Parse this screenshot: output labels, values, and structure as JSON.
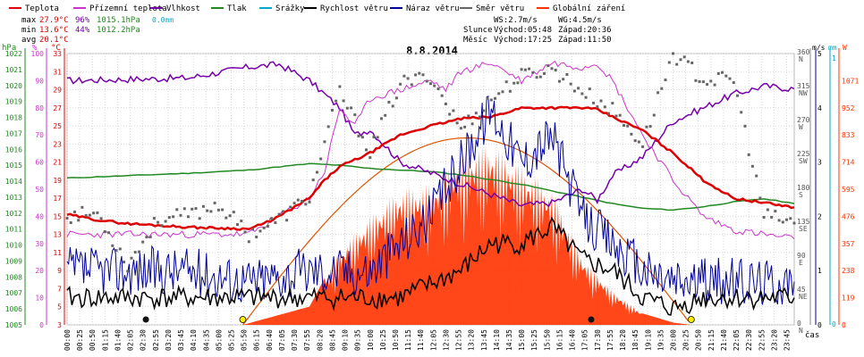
{
  "chart_data": {
    "type": "line",
    "title": "8.8.2014",
    "legend": [
      {
        "label": "Teplota",
        "color": "#dd0000"
      },
      {
        "label": "Přízemní teplota",
        "color": "#cc33cc"
      },
      {
        "label": "Vlhkost",
        "color": "#7700aa"
      },
      {
        "label": "Tlak",
        "color": "#228822"
      },
      {
        "label": "Srážky",
        "color": "#00aacc"
      },
      {
        "label": "Rychlost větru",
        "color": "#000000"
      },
      {
        "label": "Náraz větru",
        "color": "#000099"
      },
      {
        "label": "Směr větru",
        "color": "#666666"
      },
      {
        "label": "Globální záření",
        "color": "#ff3300"
      }
    ],
    "stats": {
      "max": {
        "label": "max",
        "temp": "27.9°C",
        "hum": "96%",
        "press": "1015.1hPa",
        "rain": "0.0mm"
      },
      "min": {
        "label": "min",
        "temp": "13.6°C",
        "hum": "44%",
        "press": "1012.2hPa"
      },
      "avg": {
        "label": "avg",
        "temp": "20.1°C"
      }
    },
    "info": {
      "ws": "WS:2.7m/s",
      "wg": "WG:4.5m/s",
      "slunce_label": "Slunce",
      "slunce_vychod": "Východ:05:48",
      "slunce_zapad": "Západ:20:36",
      "mesic_label": "Měsíc",
      "mesic_vychod": "Východ:17:25",
      "mesic_zapad": "Západ:11:50"
    },
    "axes": {
      "hpa": {
        "unit": "hPa",
        "min": 1005,
        "max": 1022,
        "ticks": [
          "1022",
          "1021",
          "1020",
          "1019",
          "1018",
          "1017",
          "1016",
          "1015",
          "1014",
          "1013",
          "1012",
          "1011",
          "1010",
          "1009",
          "1008",
          "1007",
          "1006",
          "1005"
        ]
      },
      "pct": {
        "unit": "%",
        "min": 0,
        "max": 100,
        "ticks": [
          "100",
          "90",
          "80",
          "70",
          "60",
          "50",
          "40",
          "30",
          "20",
          "10",
          "0"
        ]
      },
      "degc": {
        "unit": "°C",
        "min": 3,
        "max": 33,
        "ticks": [
          "33",
          "31",
          "29",
          "27",
          "25",
          "23",
          "21",
          "19",
          "17",
          "15",
          "13",
          "11",
          "9",
          "7",
          "5",
          "3"
        ]
      },
      "ms": {
        "unit": "m/s",
        "min": 0,
        "max": 5,
        "ticks": [
          "5",
          "4",
          "3",
          "2",
          "1",
          "0"
        ]
      },
      "mm": {
        "unit": "mm",
        "top_tick": "1",
        "bottom_tick": "0"
      },
      "dir": {
        "unit": "",
        "min": 0,
        "max": 360,
        "ticks": [
          {
            "v": 360,
            "deg": "360",
            "name": "N"
          },
          {
            "v": 315,
            "deg": "315",
            "name": "NW"
          },
          {
            "v": 270,
            "deg": "270",
            "name": "W"
          },
          {
            "v": 225,
            "deg": "225",
            "name": "SW"
          },
          {
            "v": 180,
            "deg": "180",
            "name": "S"
          },
          {
            "v": 135,
            "deg": "135",
            "name": "SE"
          },
          {
            "v": 90,
            "deg": "90",
            "name": "E"
          },
          {
            "v": 45,
            "deg": "45",
            "name": "NE"
          },
          {
            "v": 0,
            "deg": "0",
            "name": "N"
          }
        ]
      },
      "w": {
        "unit": "W",
        "min": 0,
        "max": 1190,
        "ticks": [
          "1071",
          "952",
          "833",
          "714",
          "595",
          "476",
          "357",
          "238",
          "119",
          "0"
        ]
      },
      "x": {
        "label": "čas",
        "ticks": [
          "00:00",
          "00:25",
          "00:50",
          "01:15",
          "01:40",
          "02:05",
          "02:30",
          "02:55",
          "03:20",
          "03:45",
          "04:10",
          "04:35",
          "05:00",
          "05:25",
          "05:50",
          "06:15",
          "06:40",
          "07:05",
          "07:30",
          "07:55",
          "08:20",
          "08:45",
          "09:10",
          "09:35",
          "10:00",
          "10:25",
          "10:50",
          "11:15",
          "11:40",
          "12:05",
          "12:30",
          "12:55",
          "13:20",
          "13:45",
          "14:10",
          "14:35",
          "15:00",
          "15:25",
          "15:50",
          "16:15",
          "16:40",
          "17:05",
          "17:30",
          "17:55",
          "18:20",
          "18:45",
          "19:10",
          "19:35",
          "20:00",
          "20:25",
          "20:50",
          "21:15",
          "21:40",
          "22:05",
          "22:30",
          "22:55",
          "23:20",
          "23:45"
        ]
      }
    },
    "series": [
      {
        "name": "Teplota",
        "axis": "degc",
        "points": [
          [
            0,
            15.2
          ],
          [
            1,
            14.6
          ],
          [
            2,
            14.2
          ],
          [
            3,
            14.0
          ],
          [
            4,
            13.8
          ],
          [
            5,
            13.7
          ],
          [
            6,
            13.6
          ],
          [
            6.5,
            14.2
          ],
          [
            7,
            15.0
          ],
          [
            8,
            17.0
          ],
          [
            8.5,
            19.0
          ],
          [
            9,
            20.5
          ],
          [
            10,
            22.0
          ],
          [
            11,
            24.0
          ],
          [
            12,
            25.0
          ],
          [
            13,
            25.8
          ],
          [
            14,
            26.0
          ],
          [
            15,
            27.0
          ],
          [
            16,
            27.0
          ],
          [
            17,
            27.0
          ],
          [
            17.5,
            26.8
          ],
          [
            18,
            26.0
          ],
          [
            19,
            24.5
          ],
          [
            20,
            22.0
          ],
          [
            21,
            19.0
          ],
          [
            22,
            17.0
          ],
          [
            23,
            16.5
          ],
          [
            24,
            16.0
          ]
        ]
      },
      {
        "name": "Přízemní teplota",
        "axis": "degc",
        "points": [
          [
            0,
            13.0
          ],
          [
            6,
            13.0
          ],
          [
            7,
            15.0
          ],
          [
            8,
            17.0
          ],
          [
            8.5,
            20.0
          ],
          [
            9,
            27.0
          ],
          [
            9.5,
            25.0
          ],
          [
            10,
            28.0
          ],
          [
            11,
            29.0
          ],
          [
            12,
            30.0
          ],
          [
            12.5,
            29.0
          ],
          [
            13,
            31.0
          ],
          [
            14,
            32.0
          ],
          [
            15,
            30.0
          ],
          [
            16,
            32.0
          ],
          [
            17,
            31.5
          ],
          [
            17.5,
            32.0
          ],
          [
            18,
            30.0
          ],
          [
            19,
            24.0
          ],
          [
            20,
            19.0
          ],
          [
            21,
            15.0
          ],
          [
            22,
            13.5
          ],
          [
            23,
            13.0
          ],
          [
            24,
            12.5
          ]
        ]
      },
      {
        "name": "Vlhkost",
        "axis": "pct",
        "points": [
          [
            0,
            90
          ],
          [
            4,
            91
          ],
          [
            6,
            95
          ],
          [
            7,
            96
          ],
          [
            8,
            90
          ],
          [
            9,
            80
          ],
          [
            9.5,
            70
          ],
          [
            10,
            72
          ],
          [
            11,
            60
          ],
          [
            12,
            56
          ],
          [
            13,
            52
          ],
          [
            14,
            48
          ],
          [
            15,
            44
          ],
          [
            16,
            45
          ],
          [
            17,
            50
          ],
          [
            17.5,
            46
          ],
          [
            18,
            55
          ],
          [
            19,
            62
          ],
          [
            20,
            75
          ],
          [
            21,
            80
          ],
          [
            22,
            85
          ],
          [
            23,
            88
          ],
          [
            24,
            87
          ]
        ]
      },
      {
        "name": "Tlak",
        "axis": "hpa",
        "points": [
          [
            0,
            1014.2
          ],
          [
            4,
            1014.5
          ],
          [
            6,
            1014.7
          ],
          [
            7,
            1014.9
          ],
          [
            8,
            1015.1
          ],
          [
            9,
            1015.0
          ],
          [
            10,
            1014.8
          ],
          [
            11,
            1014.7
          ],
          [
            12,
            1014.6
          ],
          [
            13,
            1014.4
          ],
          [
            14,
            1014.1
          ],
          [
            15,
            1013.8
          ],
          [
            16,
            1013.4
          ],
          [
            17,
            1013.0
          ],
          [
            18,
            1012.6
          ],
          [
            19,
            1012.3
          ],
          [
            20,
            1012.2
          ],
          [
            21,
            1012.4
          ],
          [
            22,
            1012.7
          ],
          [
            23,
            1012.9
          ],
          [
            24,
            1012.6
          ]
        ]
      },
      {
        "name": "Rychlost větru",
        "axis": "ms",
        "points": [
          [
            0,
            0.5
          ],
          [
            2,
            0.5
          ],
          [
            4,
            0.5
          ],
          [
            6,
            0.5
          ],
          [
            8,
            0.5
          ],
          [
            10,
            0.5
          ],
          [
            11,
            0.5
          ],
          [
            13,
            1.0
          ],
          [
            14,
            1.5
          ],
          [
            15,
            1.5
          ],
          [
            16,
            1.8
          ],
          [
            17,
            1.2
          ],
          [
            18,
            1.0
          ],
          [
            19,
            0.5
          ],
          [
            20,
            0.3
          ],
          [
            21,
            0.5
          ],
          [
            24,
            0.5
          ]
        ]
      },
      {
        "name": "Náraz větru",
        "axis": "ms",
        "points": [
          [
            0,
            1.0
          ],
          [
            2,
            1.0
          ],
          [
            4,
            1.0
          ],
          [
            6,
            0.8
          ],
          [
            8,
            1.0
          ],
          [
            10,
            1.0
          ],
          [
            11,
            1.5
          ],
          [
            12,
            2.0
          ],
          [
            13,
            3.0
          ],
          [
            14,
            4.0
          ],
          [
            15,
            3.0
          ],
          [
            16,
            3.5
          ],
          [
            17,
            2.0
          ],
          [
            18,
            1.5
          ],
          [
            19,
            1.0
          ],
          [
            20,
            0.8
          ],
          [
            21,
            0.8
          ],
          [
            24,
            0.8
          ]
        ]
      },
      {
        "name": "Globální záření",
        "axis": "w",
        "points": [
          [
            5.8,
            0
          ],
          [
            8,
            80
          ],
          [
            9,
            330
          ],
          [
            10,
            480
          ],
          [
            11,
            600
          ],
          [
            12,
            620
          ],
          [
            13,
            760
          ],
          [
            14,
            800
          ],
          [
            15,
            700
          ],
          [
            16,
            600
          ],
          [
            17,
            300
          ],
          [
            18,
            150
          ],
          [
            19,
            50
          ],
          [
            20,
            10
          ],
          [
            20.6,
            0
          ]
        ]
      },
      {
        "name": "Směr větru",
        "axis": "dir",
        "points": [
          [
            0,
            145
          ],
          [
            1,
            148
          ],
          [
            2,
            80
          ],
          [
            3,
            140
          ],
          [
            4,
            145
          ],
          [
            5,
            160
          ],
          [
            6,
            120
          ],
          [
            7,
            140
          ],
          [
            8,
            170
          ],
          [
            9,
            310
          ],
          [
            10,
            230
          ],
          [
            11,
            320
          ],
          [
            12,
            330
          ],
          [
            13,
            260
          ],
          [
            14,
            300
          ],
          [
            15,
            330
          ],
          [
            16,
            340
          ],
          [
            17,
            310
          ],
          [
            18,
            285
          ],
          [
            19,
            240
          ],
          [
            20,
            360
          ],
          [
            21,
            325
          ],
          [
            22,
            325
          ],
          [
            23,
            145
          ],
          [
            24,
            135
          ]
        ]
      }
    ]
  }
}
